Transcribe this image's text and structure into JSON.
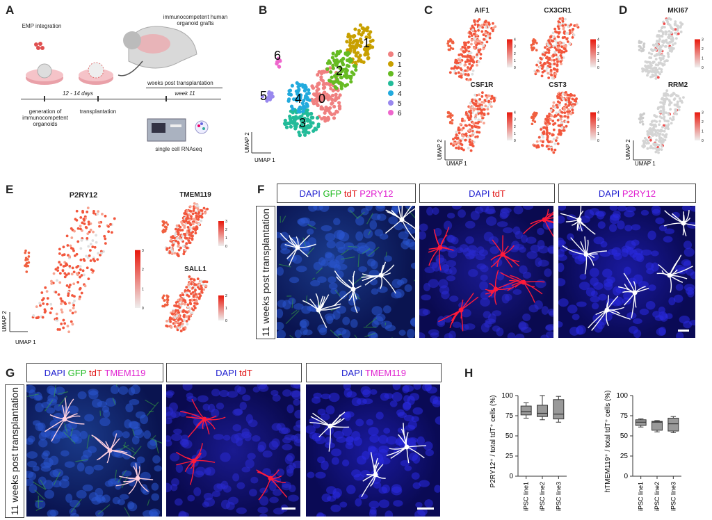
{
  "panels": {
    "A": {
      "label": "A",
      "emp": "EMP integration",
      "immuno": "immunocompetent human organoid grafts",
      "days": "12 - 14 days",
      "wpt": "weeks post transplantation",
      "week": "week 11",
      "gen": "generation of immunocompetent organoids",
      "transplantation": "transplantation",
      "scrna": "single cell RNAseq"
    },
    "B": {
      "label": "B",
      "umap1": "UMAP 1",
      "umap2": "UMAP 2",
      "legend": [
        {
          "name": "0",
          "color": "#f08080"
        },
        {
          "name": "1",
          "color": "#c8a000"
        },
        {
          "name": "2",
          "color": "#66bb22"
        },
        {
          "name": "3",
          "color": "#22bb99"
        },
        {
          "name": "4",
          "color": "#22aadd"
        },
        {
          "name": "5",
          "color": "#9988ee"
        },
        {
          "name": "6",
          "color": "#ee66cc"
        }
      ],
      "cluster_labels": [
        "0",
        "1",
        "2",
        "3",
        "4",
        "5",
        "6"
      ]
    },
    "C": {
      "label": "C",
      "genes": [
        "AIF1",
        "CX3CR1",
        "CSF1R",
        "CST3"
      ],
      "umap1": "UMAP 1",
      "umap2": "UMAP 2"
    },
    "D": {
      "label": "D",
      "genes": [
        "MKI67",
        "RRM2"
      ],
      "umap1": "UMAP 1",
      "umap2": "UMAP 2"
    },
    "E": {
      "label": "E",
      "genes": [
        "P2RY12",
        "TMEM119",
        "SALL1"
      ],
      "umap1": "UMAP 1",
      "umap2": "UMAP 2"
    },
    "F": {
      "label": "F",
      "side": "11 weeks post transplantation",
      "box1": [
        "DAPI",
        "GFP",
        "tdT",
        "P2RY12"
      ],
      "box2": [
        "DAPI",
        "tdT"
      ],
      "box3": [
        "DAPI",
        "P2RY12"
      ]
    },
    "G": {
      "label": "G",
      "side": "11 weeks post transplantation",
      "box1": [
        "DAPI",
        "GFP",
        "tdT",
        "TMEM119"
      ],
      "box2": [
        "DAPI",
        "tdT"
      ],
      "box3": [
        "DAPI",
        "TMEM119"
      ]
    },
    "H": {
      "label": "H"
    }
  },
  "scale_ticks_c": [
    "4",
    "3",
    "2",
    "1",
    "0"
  ],
  "scale_ticks_d": [
    "3",
    "2",
    "1",
    "0"
  ],
  "scale_ticks_e": [
    "3",
    "2",
    "1",
    "0"
  ],
  "scale_ticks_e2": [
    "2",
    "1",
    "0"
  ],
  "chart_data": [
    {
      "type": "box",
      "ylabel": "P2RY12⁺ / total tdT⁺ cells (%)",
      "categories": [
        "iPSC line1",
        "iPSC line2",
        "iPSC line3"
      ],
      "ylim": [
        0,
        100
      ],
      "yticks": [
        "0",
        "25",
        "50",
        "75",
        "100"
      ],
      "boxes": [
        {
          "min": 72,
          "q1": 76,
          "median": 80,
          "q3": 87,
          "max": 91
        },
        {
          "min": 70,
          "q1": 74,
          "median": 78,
          "q3": 88,
          "max": 100
        },
        {
          "min": 67,
          "q1": 71,
          "median": 77,
          "q3": 95,
          "max": 99
        }
      ]
    },
    {
      "type": "box",
      "ylabel": "hTMEM119⁺ / total tdT⁺ cells (%)",
      "categories": [
        "iPSC line1",
        "iPSC line2",
        "iPSC line3"
      ],
      "ylim": [
        0,
        100
      ],
      "yticks": [
        "0",
        "25",
        "50",
        "75",
        "100"
      ],
      "boxes": [
        {
          "min": 61,
          "q1": 63,
          "median": 67,
          "q3": 70,
          "max": 71
        },
        {
          "min": 55,
          "q1": 57,
          "median": 67,
          "q3": 68,
          "max": 69
        },
        {
          "min": 54,
          "q1": 56,
          "median": 65,
          "q3": 72,
          "max": 74
        }
      ]
    }
  ]
}
